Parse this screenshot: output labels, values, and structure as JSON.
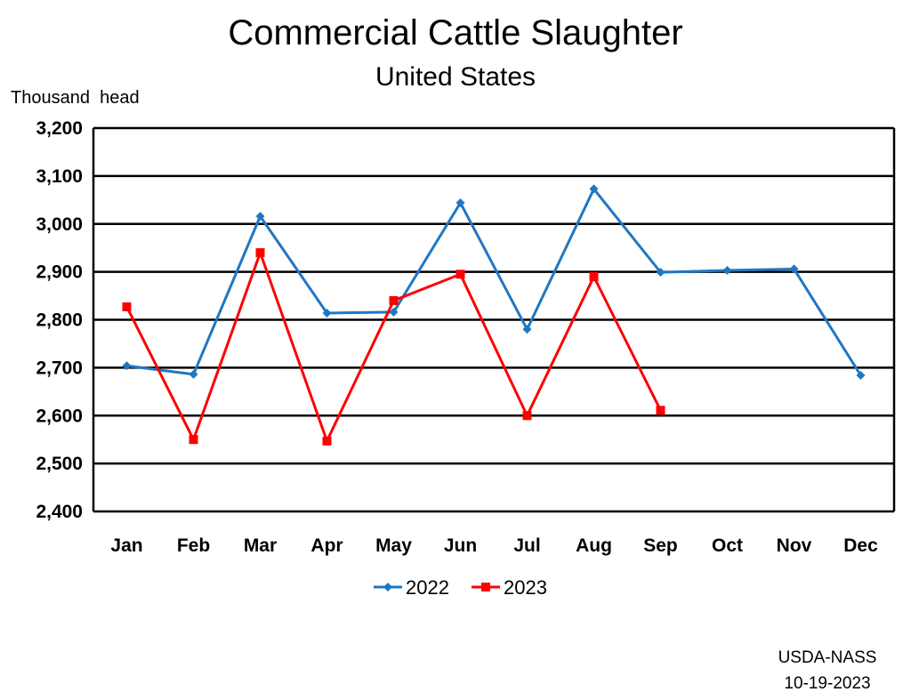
{
  "chart_data": {
    "type": "line",
    "title": "Commercial Cattle Slaughter",
    "subtitle": "United States",
    "ylabel": "Thousand  head",
    "xlabel": "",
    "categories": [
      "Jan",
      "Feb",
      "Mar",
      "Apr",
      "May",
      "Jun",
      "Jul",
      "Aug",
      "Sep",
      "Oct",
      "Nov",
      "Dec"
    ],
    "ylim": [
      2400,
      3200
    ],
    "yticks": [
      2400,
      2500,
      2600,
      2700,
      2800,
      2900,
      3000,
      3100,
      3200
    ],
    "ytick_labels": [
      "2,400",
      "2,500",
      "2,600",
      "2,700",
      "2,800",
      "2,900",
      "3,000",
      "3,100",
      "3,200"
    ],
    "grid": true,
    "legend_position": "bottom",
    "series": [
      {
        "name": "2022",
        "color": "#1f77c4",
        "marker": "diamond",
        "values": [
          2704,
          2686,
          3016,
          2814,
          2816,
          3044,
          2780,
          3073,
          2899,
          2903,
          2906,
          2684
        ]
      },
      {
        "name": "2023",
        "color": "#ff0000",
        "marker": "square",
        "values": [
          2827,
          2550,
          2940,
          2547,
          2840,
          2895,
          2600,
          2890,
          2611,
          null,
          null,
          null
        ]
      }
    ],
    "source": "USDA-NASS",
    "date": "10-19-2023"
  }
}
